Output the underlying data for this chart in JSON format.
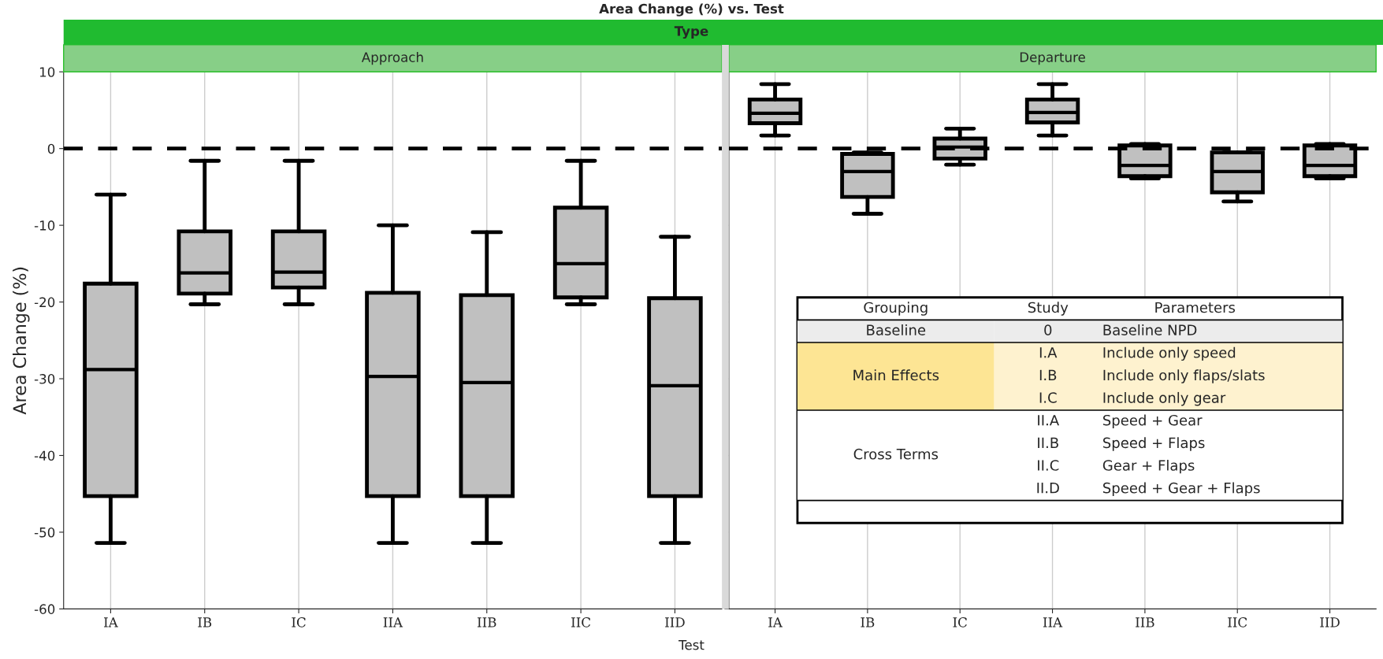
{
  "chart_data": [
    {
      "type": "box",
      "title": "Approach",
      "annotations": [
        "Area Change (%) vs. Test",
        "Type"
      ],
      "xlabel": "Test",
      "ylabel": "Area Change (%)",
      "categories": [
        "IA",
        "IB",
        "IC",
        "IIA",
        "IIB",
        "IIC",
        "IID"
      ],
      "color": "#c0c0c0",
      "boxes": [
        {
          "low": -51.4,
          "q1": -45.3,
          "median": -28.8,
          "q3": -17.6,
          "high": -6
        },
        {
          "low": -20.3,
          "q1": -18.9,
          "median": -16.2,
          "q3": -10.8,
          "high": -1.6
        },
        {
          "low": -20.3,
          "q1": -18.1,
          "median": -16.1,
          "q3": -10.8,
          "high": -1.6
        },
        {
          "low": -51.4,
          "q1": -45.3,
          "median": -29.7,
          "q3": -18.8,
          "high": -10
        },
        {
          "low": -51.4,
          "q1": -45.3,
          "median": -30.5,
          "q3": -19.1,
          "high": -10.9
        },
        {
          "low": -20.3,
          "q1": -19.4,
          "median": -15,
          "q3": -7.7,
          "high": -1.6
        },
        {
          "low": -51.4,
          "q1": -45.3,
          "median": -30.9,
          "q3": -19.5,
          "high": -11.5
        }
      ],
      "ylim": [
        -60,
        10
      ],
      "yticks": [
        -60,
        -50,
        -40,
        -30,
        -20,
        -10,
        0,
        10
      ],
      "grid": "x",
      "ref_lines": [
        {
          "axis": "y",
          "value": 0,
          "color": "#000000",
          "line_style": "dashed"
        }
      ]
    },
    {
      "type": "box",
      "title": "Departure",
      "tick_labels": "x",
      "categories": [
        "IA",
        "IB",
        "IC",
        "IIA",
        "IIB",
        "IIC",
        "IID"
      ],
      "color": "#c0c0c0",
      "boxes": [
        {
          "low": 1.7,
          "q1": 3.3,
          "median": 4.6,
          "q3": 6.4,
          "high": 8.4
        },
        {
          "low": -8.5,
          "q1": -6.3,
          "median": -3,
          "q3": -0.7,
          "high": -0.5
        },
        {
          "low": -2.1,
          "q1": -1.3,
          "median": 0.2,
          "q3": 1.3,
          "high": 2.6
        },
        {
          "low": 1.7,
          "q1": 3.4,
          "median": 4.7,
          "q3": 6.4,
          "high": 8.4
        },
        {
          "low": -3.9,
          "q1": -3.6,
          "median": -2.2,
          "q3": 0.4,
          "high": 0.6
        },
        {
          "low": -6.9,
          "q1": -5.7,
          "median": -3,
          "q3": -0.5,
          "high": -0.5
        },
        {
          "low": -3.9,
          "q1": -3.6,
          "median": -2.2,
          "q3": 0.4,
          "high": 0.6
        }
      ],
      "ylim": [
        -60,
        10
      ],
      "yticks": [
        -60,
        -50,
        -40,
        -30,
        -20,
        -10,
        0,
        10
      ],
      "grid": "x",
      "ref_lines": [
        {
          "axis": "y",
          "value": 0,
          "color": "#000000",
          "line_style": "dashed"
        }
      ],
      "annotations": [
        "Grouping",
        "Study",
        "Parameters",
        "Baseline",
        "0",
        "Baseline NPD",
        "Main Effects",
        "I.A",
        "Include only speed",
        "I.B",
        "Include only flaps/slats",
        "I.C",
        "Include only gear",
        "Cross Terms",
        "II.A",
        "Speed + Gear",
        "II.B",
        "Speed + Flaps",
        "II.C",
        "Gear + Flaps",
        "II.D",
        "Speed + Gear + Flaps"
      ]
    }
  ]
}
